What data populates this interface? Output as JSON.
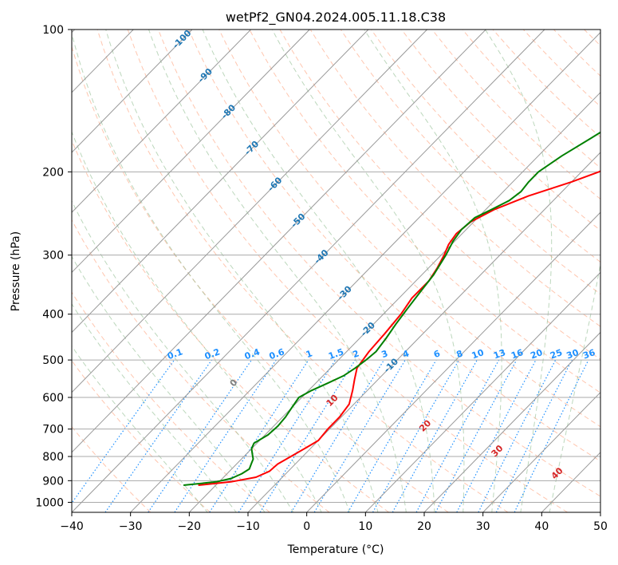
{
  "chart_data": {
    "type": "line",
    "title": "wetPf2_GN04.2024.005.11.18.C38",
    "xlabel": "Temperature (°C)",
    "ylabel": "Pressure (hPa)",
    "xlim": [
      -40,
      50
    ],
    "ylim": [
      1050,
      100
    ],
    "y_scale": "log",
    "grid": true,
    "x_ticks": [
      "−40",
      "−30",
      "−20",
      "−10",
      "0",
      "10",
      "20",
      "30",
      "40",
      "50"
    ],
    "y_ticks": [
      "100",
      "200",
      "300",
      "400",
      "500",
      "600",
      "700",
      "800",
      "900",
      "1000"
    ],
    "x_tick_values": [
      -40,
      -30,
      -20,
      -10,
      0,
      10,
      20,
      30,
      40,
      50
    ],
    "y_tick_values": [
      100,
      200,
      300,
      400,
      500,
      600,
      700,
      800,
      900,
      1000
    ],
    "series": [
      {
        "color": "#ff0000",
        "pressure": [
          920,
          905,
          885,
          860,
          830,
          800,
          770,
          740,
          700,
          660,
          620,
          580,
          550,
          520,
          480,
          440,
          400,
          370,
          340,
          320,
          300,
          285,
          270,
          255,
          240,
          225,
          210,
          200,
          185,
          170,
          155,
          140,
          125,
          110,
          100
        ],
        "temperature": [
          -23,
          -18,
          -14.5,
          -13.2,
          -13,
          -12,
          -11,
          -10,
          -10.3,
          -10.3,
          -10.8,
          -12.5,
          -14,
          -15.5,
          -16.2,
          -16.5,
          -17,
          -17.8,
          -17.8,
          -18.5,
          -19.5,
          -20.5,
          -21,
          -20.5,
          -18.5,
          -15,
          -10,
          -7,
          -3.5,
          -1,
          2,
          5,
          8,
          12,
          16
        ]
      },
      {
        "color": "#008000",
        "pressure": [
          920,
          905,
          890,
          870,
          850,
          830,
          810,
          790,
          770,
          750,
          720,
          690,
          660,
          630,
          600,
          580,
          560,
          540,
          520,
          500,
          480,
          450,
          420,
          390,
          360,
          330,
          300,
          280,
          265,
          250,
          240,
          230,
          220,
          210,
          200,
          185,
          170,
          155,
          140,
          125,
          110,
          100
        ],
        "temperature": [
          -25.5,
          -20.5,
          -18.5,
          -17.5,
          -17,
          -17.5,
          -18,
          -19,
          -20,
          -20.5,
          -19.5,
          -19.3,
          -19.5,
          -20,
          -20.5,
          -19.5,
          -18,
          -16.5,
          -15.8,
          -15.3,
          -15,
          -15.5,
          -16.2,
          -16.8,
          -17.4,
          -18,
          -19.2,
          -20.3,
          -20.8,
          -20.5,
          -19,
          -17.5,
          -17,
          -17.3,
          -17.3,
          -16,
          -14,
          -12,
          -10,
          -7.5,
          -5,
          -3
        ]
      }
    ],
    "isotherm_labels": [
      "-100",
      "-90",
      "-80",
      "-70",
      "-60",
      "-50",
      "-40",
      "-30",
      "-20",
      "-10"
    ],
    "isotherm_label_values": [
      -100,
      -90,
      -80,
      -70,
      -60,
      -50,
      -40,
      -30,
      -20,
      -10
    ],
    "mixing_ratio_labels": [
      "0.1",
      "0.2",
      "0.4",
      "0.6",
      "1",
      "1.5",
      "2",
      "3",
      "4",
      "6",
      "8",
      "10",
      "13",
      "16",
      "20",
      "25",
      "30",
      "36"
    ],
    "mixing_ratio_values": [
      0.1,
      0.2,
      0.4,
      0.6,
      1,
      1.5,
      2,
      3,
      4,
      6,
      8,
      10,
      13,
      16,
      20,
      25,
      30,
      36
    ],
    "moist_adiabat_labels": [
      "0",
      "10",
      "20",
      "30",
      "40"
    ],
    "moist_adiabat_values": [
      0,
      10,
      20,
      30,
      40
    ],
    "colors": {
      "isotherm": "#999999",
      "isobar": "#aaaaaa",
      "dry_adiabat": "#ffa07a",
      "moist_adiabat": "#8fbc8f",
      "mixing_ratio": "#1e90ff",
      "isotherm_label": "#1f77b4",
      "moist_label_zero": "#808080",
      "moist_label": "#d62728"
    }
  }
}
